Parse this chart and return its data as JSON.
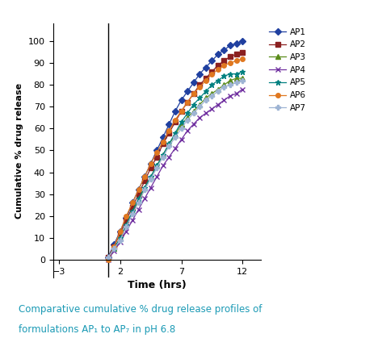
{
  "xlabel": "Time (hrs)",
  "ylabel": "Cumulative % drug release",
  "xlim": [
    -3.5,
    13.5
  ],
  "ylim": [
    -8,
    108
  ],
  "xticks": [
    -3,
    2,
    7,
    12
  ],
  "yticks": [
    0,
    10,
    20,
    30,
    40,
    50,
    60,
    70,
    80,
    90,
    100
  ],
  "caption_line1": "Comparative cumulative % drug release profiles of",
  "caption_line2": "formulations AP₁ to AP₇ in pH 6.8",
  "caption_color": "#1B9AB5",
  "series": [
    {
      "label": "AP1",
      "color": "#2040A0",
      "marker": "D",
      "markersize": 4,
      "x": [
        1,
        1.5,
        2,
        2.5,
        3,
        3.5,
        4,
        4.5,
        5,
        5.5,
        6,
        6.5,
        7,
        7.5,
        8,
        8.5,
        9,
        9.5,
        10,
        10.5,
        11,
        11.5,
        12
      ],
      "y": [
        1,
        7,
        13,
        19,
        26,
        32,
        38,
        44,
        50,
        56,
        62,
        68,
        73,
        77,
        81,
        85,
        88,
        91,
        94,
        96,
        98,
        99,
        100
      ]
    },
    {
      "label": "AP2",
      "color": "#8B2020",
      "marker": "s",
      "markersize": 4,
      "x": [
        1,
        1.5,
        2,
        2.5,
        3,
        3.5,
        4,
        4.5,
        5,
        5.5,
        6,
        6.5,
        7,
        7.5,
        8,
        8.5,
        9,
        9.5,
        10,
        10.5,
        11,
        11.5,
        12
      ],
      "y": [
        1,
        6,
        12,
        18,
        24,
        30,
        36,
        42,
        47,
        53,
        58,
        63,
        68,
        72,
        76,
        80,
        83,
        86,
        89,
        91,
        93,
        94,
        95
      ]
    },
    {
      "label": "AP3",
      "color": "#5A8C1A",
      "marker": "^",
      "markersize": 4,
      "x": [
        1,
        1.5,
        2,
        2.5,
        3,
        3.5,
        4,
        4.5,
        5,
        5.5,
        6,
        6.5,
        7,
        7.5,
        8,
        8.5,
        9,
        9.5,
        10,
        10.5,
        11,
        11.5,
        12
      ],
      "y": [
        1,
        5,
        10,
        16,
        22,
        27,
        33,
        38,
        43,
        48,
        53,
        57,
        62,
        65,
        68,
        71,
        74,
        76,
        78,
        80,
        82,
        83,
        83
      ]
    },
    {
      "label": "AP4",
      "color": "#7030A0",
      "marker": "x",
      "markersize": 5,
      "x": [
        1,
        1.5,
        2,
        2.5,
        3,
        3.5,
        4,
        4.5,
        5,
        5.5,
        6,
        6.5,
        7,
        7.5,
        8,
        8.5,
        9,
        9.5,
        10,
        10.5,
        11,
        11.5,
        12
      ],
      "y": [
        0,
        4,
        8,
        13,
        18,
        23,
        28,
        33,
        38,
        43,
        47,
        51,
        55,
        59,
        62,
        65,
        67,
        69,
        71,
        73,
        75,
        76,
        78
      ]
    },
    {
      "label": "AP5",
      "color": "#008080",
      "marker": "*",
      "markersize": 5,
      "x": [
        1,
        1.5,
        2,
        2.5,
        3,
        3.5,
        4,
        4.5,
        5,
        5.5,
        6,
        6.5,
        7,
        7.5,
        8,
        8.5,
        9,
        9.5,
        10,
        10.5,
        11,
        11.5,
        12
      ],
      "y": [
        1,
        5,
        10,
        16,
        22,
        28,
        33,
        38,
        43,
        48,
        53,
        58,
        63,
        67,
        71,
        74,
        77,
        80,
        82,
        84,
        85,
        85,
        86
      ]
    },
    {
      "label": "AP6",
      "color": "#E07820",
      "marker": "o",
      "markersize": 4,
      "x": [
        1,
        1.5,
        2,
        2.5,
        3,
        3.5,
        4,
        4.5,
        5,
        5.5,
        6,
        6.5,
        7,
        7.5,
        8,
        8.5,
        9,
        9.5,
        10,
        10.5,
        11,
        11.5,
        12
      ],
      "y": [
        0,
        6,
        13,
        20,
        26,
        32,
        38,
        44,
        49,
        54,
        59,
        64,
        68,
        72,
        76,
        79,
        82,
        85,
        87,
        89,
        90,
        91,
        92
      ]
    },
    {
      "label": "AP7",
      "color": "#9EB4D4",
      "marker": "P",
      "markersize": 4,
      "x": [
        1,
        1.5,
        2,
        2.5,
        3,
        3.5,
        4,
        4.5,
        5,
        5.5,
        6,
        6.5,
        7,
        7.5,
        8,
        8.5,
        9,
        9.5,
        10,
        10.5,
        11,
        11.5,
        12
      ],
      "y": [
        1,
        5,
        9,
        15,
        21,
        26,
        32,
        37,
        42,
        47,
        52,
        56,
        60,
        64,
        67,
        70,
        73,
        75,
        77,
        79,
        80,
        81,
        82
      ]
    }
  ]
}
